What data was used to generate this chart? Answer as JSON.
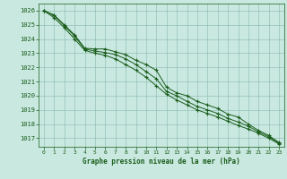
{
  "xlabel": "Graphe pression niveau de la mer (hPa)",
  "x": [
    0,
    1,
    2,
    3,
    4,
    5,
    6,
    7,
    8,
    9,
    10,
    11,
    12,
    13,
    14,
    15,
    16,
    17,
    18,
    19,
    20,
    21,
    22,
    23
  ],
  "line1": [
    1026.0,
    1025.7,
    1025.0,
    1024.3,
    1023.35,
    1023.3,
    1023.3,
    1023.1,
    1022.9,
    1022.5,
    1022.2,
    1021.8,
    1020.6,
    1020.2,
    1020.0,
    1019.6,
    1019.35,
    1019.1,
    1018.7,
    1018.5,
    1018.0,
    1017.55,
    1017.2,
    1016.7
  ],
  "line2": [
    1026.0,
    1025.65,
    1024.95,
    1024.2,
    1023.3,
    1023.15,
    1023.05,
    1022.9,
    1022.6,
    1022.2,
    1021.7,
    1021.2,
    1020.3,
    1020.0,
    1019.6,
    1019.25,
    1019.0,
    1018.75,
    1018.4,
    1018.15,
    1017.85,
    1017.45,
    1017.1,
    1016.65
  ],
  "line3": [
    1026.0,
    1025.5,
    1024.8,
    1024.0,
    1023.2,
    1023.0,
    1022.85,
    1022.6,
    1022.2,
    1021.8,
    1021.3,
    1020.7,
    1020.1,
    1019.7,
    1019.35,
    1019.0,
    1018.75,
    1018.5,
    1018.2,
    1017.9,
    1017.65,
    1017.35,
    1017.0,
    1016.6
  ],
  "line_color": "#1a5c1a",
  "bg_color": "#c8e8e0",
  "grid_color": "#8ab8b0",
  "text_color": "#1a5c1a",
  "ylim_min": 1016.4,
  "ylim_max": 1026.5,
  "yticks": [
    1017,
    1018,
    1019,
    1020,
    1021,
    1022,
    1023,
    1024,
    1025,
    1026
  ],
  "xticks": [
    0,
    1,
    2,
    3,
    4,
    5,
    6,
    7,
    8,
    9,
    10,
    11,
    12,
    13,
    14,
    15,
    16,
    17,
    18,
    19,
    20,
    21,
    22,
    23
  ]
}
